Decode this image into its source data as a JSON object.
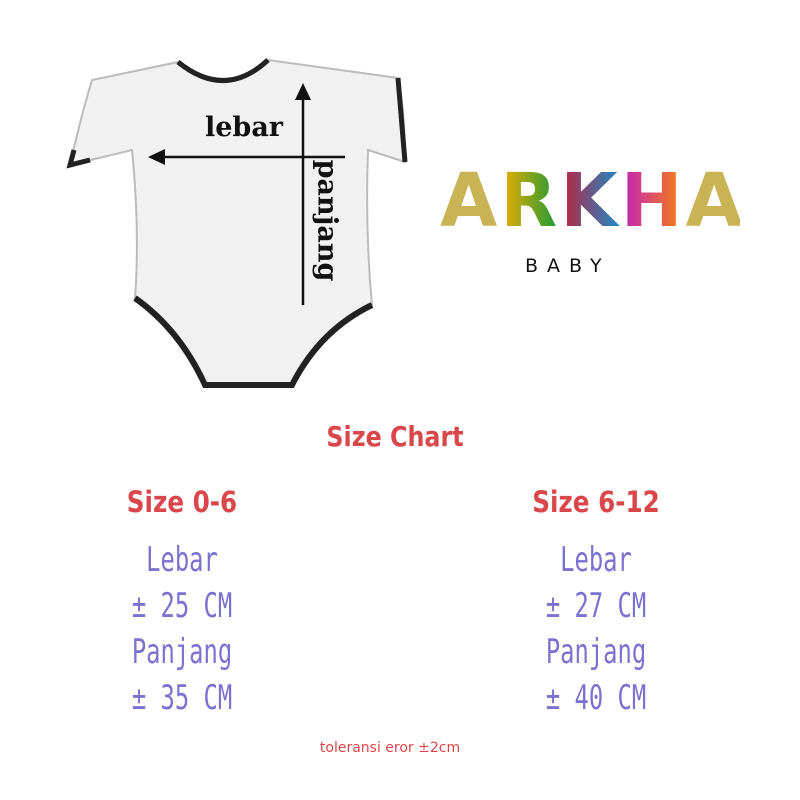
{
  "diagram": {
    "width_label": "lebar",
    "length_label": "panjang"
  },
  "brand": {
    "name": "ARKHA",
    "letters": [
      "A",
      "R",
      "K",
      "H",
      "A"
    ],
    "subtitle": "BABY",
    "colors": {
      "A": "#c8b455",
      "R_top": "#f2ad00",
      "R_bottom": "#179a3a",
      "K_left": "#c0203c",
      "K_right": "#1a8cc8",
      "H_top": "#c01fc0",
      "H_bottom": "#f47c18"
    }
  },
  "title": "Size Chart",
  "sizes": [
    {
      "name": "Size 0-6",
      "width_label": "Lebar",
      "width": "± 25 CM",
      "length_label": "Panjang",
      "length": "± 35 CM"
    },
    {
      "name": "Size 6-12",
      "width_label": "Lebar",
      "width": "± 27 CM",
      "length_label": "Panjang",
      "length": "± 40 CM"
    }
  ],
  "tolerance": "toleransi eror ±2cm",
  "colors": {
    "heading": "#d9474a",
    "values": "#7b72d0"
  }
}
